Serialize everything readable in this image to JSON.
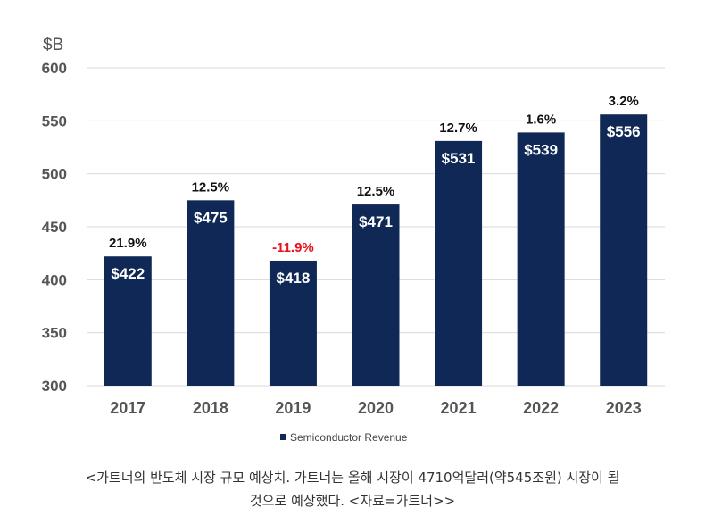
{
  "chart_data": {
    "type": "bar",
    "ylabel": "$B",
    "ylim": [
      300,
      600
    ],
    "yticks": [
      300,
      350,
      400,
      450,
      500,
      550,
      600
    ],
    "grid": true,
    "legend": "bottom",
    "categories": [
      "2017",
      "2018",
      "2019",
      "2020",
      "2021",
      "2022",
      "2023"
    ],
    "series": [
      {
        "name": "Semiconductor Revenue",
        "values": [
          422,
          475,
          418,
          471,
          531,
          539,
          556
        ],
        "value_labels": [
          "$422",
          "$475",
          "$418",
          "$471",
          "$531",
          "$539",
          "$556"
        ],
        "growth_labels": [
          "21.9%",
          "12.5%",
          "-11.9%",
          "12.5%",
          "12.7%",
          "1.6%",
          "3.2%"
        ]
      }
    ],
    "colors": {
      "bar": "#0f2855",
      "negative": "#e8121d",
      "text": "#111111",
      "axis_text": "#555555",
      "grid": "#d9d9d9"
    }
  },
  "caption": {
    "line1": "<가트너의 반도체 시장 규모 예상치. 가트너는 올해 시장이 4710억달러(약545조원) 시장이 될",
    "line2": "것으로 예상했다. <자료=가트너>>"
  }
}
